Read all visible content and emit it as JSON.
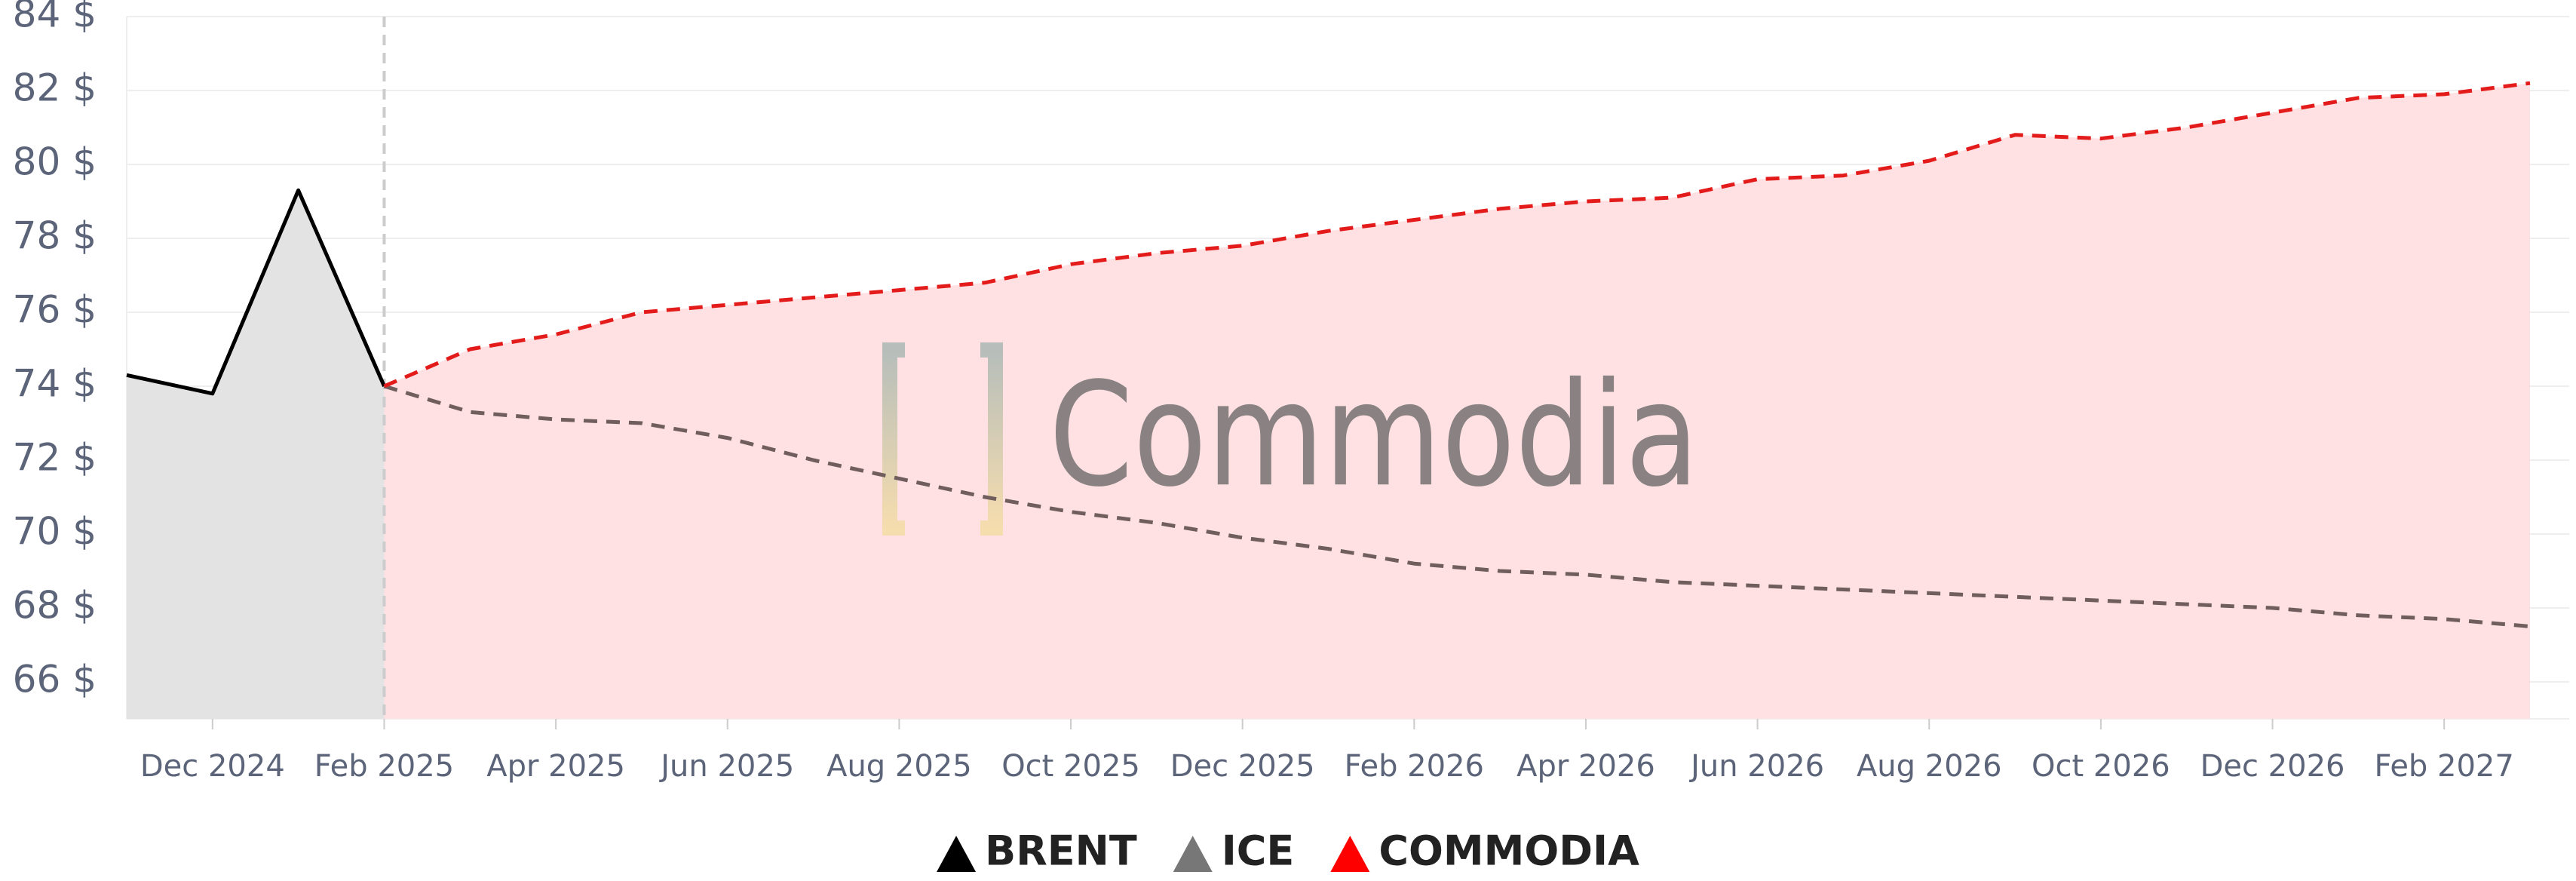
{
  "chart_data": {
    "type": "line",
    "watermark": "Commodia",
    "x": [
      "2024-11",
      "2024-12",
      "2025-01",
      "2025-02",
      "2025-03",
      "2025-04",
      "2025-05",
      "2025-06",
      "2025-07",
      "2025-08",
      "2025-09",
      "2025-10",
      "2025-11",
      "2025-12",
      "2026-01",
      "2026-02",
      "2026-03",
      "2026-04",
      "2026-05",
      "2026-06",
      "2026-07",
      "2026-08",
      "2026-09",
      "2026-10",
      "2026-11",
      "2026-12",
      "2027-01",
      "2027-02",
      "2027-03"
    ],
    "xlim": [
      "2024-11",
      "2027-03"
    ],
    "xticks": [
      {
        "value": "2024-12",
        "label": "Dec 2024"
      },
      {
        "value": "2025-02",
        "label": "Feb 2025"
      },
      {
        "value": "2025-04",
        "label": "Apr 2025"
      },
      {
        "value": "2025-06",
        "label": "Jun 2025"
      },
      {
        "value": "2025-08",
        "label": "Aug 2025"
      },
      {
        "value": "2025-10",
        "label": "Oct 2025"
      },
      {
        "value": "2025-12",
        "label": "Dec 2025"
      },
      {
        "value": "2026-02",
        "label": "Feb 2026"
      },
      {
        "value": "2026-04",
        "label": "Apr 2026"
      },
      {
        "value": "2026-06",
        "label": "Jun 2026"
      },
      {
        "value": "2026-08",
        "label": "Aug 2026"
      },
      {
        "value": "2026-10",
        "label": "Oct 2026"
      },
      {
        "value": "2026-12",
        "label": "Dec 2026"
      },
      {
        "value": "2027-02",
        "label": "Feb 2027"
      }
    ],
    "ylim": [
      65,
      84
    ],
    "yticks": [
      {
        "value": 66,
        "label": "66 $"
      },
      {
        "value": 68,
        "label": "68 $"
      },
      {
        "value": 70,
        "label": "70 $"
      },
      {
        "value": 72,
        "label": "72 $"
      },
      {
        "value": 74,
        "label": "74 $"
      },
      {
        "value": 76,
        "label": "76 $"
      },
      {
        "value": 78,
        "label": "78 $"
      },
      {
        "value": 80,
        "label": "80 $"
      },
      {
        "value": 82,
        "label": "82 $"
      },
      {
        "value": 84,
        "label": "84 $"
      }
    ],
    "grid": true,
    "legend": "bottom",
    "series": [
      {
        "name": "BRENT",
        "color": "#000000",
        "line_color": "#000000",
        "fill": "#e3e3e3",
        "dashed": false,
        "values": [
          74.3,
          73.8,
          79.3,
          74.0,
          null,
          null,
          null,
          null,
          null,
          null,
          null,
          null,
          null,
          null,
          null,
          null,
          null,
          null,
          null,
          null,
          null,
          null,
          null,
          null,
          null,
          null,
          null,
          null,
          null
        ]
      },
      {
        "name": "ICE",
        "color": "#777777",
        "line_color": "#705e5e",
        "fill": "#d9d0d0",
        "dashed": true,
        "values": [
          null,
          null,
          null,
          74.0,
          73.3,
          73.1,
          73.0,
          72.6,
          72.0,
          71.5,
          71.0,
          70.6,
          70.3,
          69.9,
          69.6,
          69.2,
          69.0,
          68.9,
          68.7,
          68.6,
          68.5,
          68.4,
          68.3,
          68.2,
          68.1,
          68.0,
          67.8,
          67.7,
          67.5
        ]
      },
      {
        "name": "COMMODIA",
        "color": "#ff0000",
        "line_color": "#e31b1b",
        "fill": "#ffe1e3",
        "dashed": true,
        "values": [
          null,
          null,
          null,
          74.0,
          75.0,
          75.4,
          76.0,
          76.2,
          76.4,
          76.6,
          76.8,
          77.3,
          77.6,
          77.8,
          78.2,
          78.5,
          78.8,
          79.0,
          79.1,
          79.6,
          79.7,
          80.1,
          80.8,
          80.7,
          81.0,
          81.4,
          81.8,
          81.9,
          82.2
        ]
      }
    ]
  }
}
